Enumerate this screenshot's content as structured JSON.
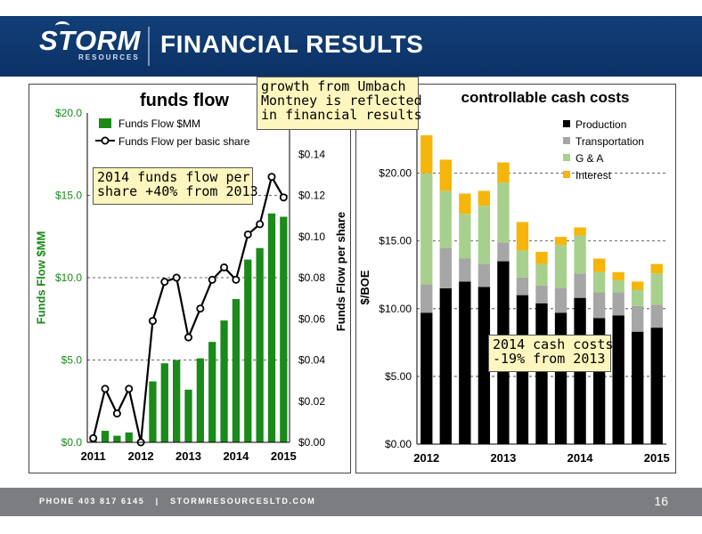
{
  "header": {
    "logo_text": "STORM",
    "logo_subtext": "RESOURCES",
    "title": "FINANCIAL RESULTS"
  },
  "footer": {
    "contact": "PHONE 403 817 6145   |   STORMRESOURCESLTD.COM",
    "page_number": "16"
  },
  "colors": {
    "brand_blue": "#123f78",
    "funds_green": "#1a8a1a",
    "production": "#000000",
    "transportation": "#a6a6a6",
    "g_and_a": "#a8d08d",
    "interest": "#f5b50a",
    "note_fill": "#fdf6be"
  },
  "notes": {
    "umbach": "growth from Umbach\nMontney is reflected\nin financial results",
    "funds": "2014 funds flow per\nshare +40% from 2013",
    "costs": "2014 cash costs\n-19% from 2013"
  },
  "chart_data": [
    {
      "type": "bar",
      "title": "funds flow",
      "ylabel": "Funds Flow $MM",
      "y2label": "Funds Flow per share",
      "ylim": [
        0,
        20
      ],
      "y2lim": [
        0,
        0.16
      ],
      "yticks": [
        "$0.0",
        "$5.0",
        "$10.0",
        "$15.0",
        "$20.0"
      ],
      "y2ticks": [
        "$0.00",
        "$0.02",
        "$0.04",
        "$0.06",
        "$0.08",
        "$0.10",
        "$0.12",
        "$0.14"
      ],
      "xtick_labels": [
        "2011",
        "2012",
        "2013",
        "2014",
        "2015"
      ],
      "x_quarters": [
        "2011 Q1",
        "2011 Q2",
        "2011 Q3",
        "2011 Q4",
        "2012 Q1",
        "2012 Q2",
        "2012 Q3",
        "2012 Q4",
        "2013 Q1",
        "2013 Q2",
        "2013 Q3",
        "2013 Q4",
        "2014 Q1",
        "2014 Q2",
        "2014 Q3",
        "2014 Q4",
        "2015 Q1"
      ],
      "grid": "horizontal dashed",
      "legend_position": "top-left",
      "series": [
        {
          "name": "Funds Flow $MM",
          "type": "bar",
          "axis": "left",
          "values": [
            0.1,
            0.7,
            0.4,
            0.6,
            0.0,
            3.7,
            4.8,
            5.0,
            3.2,
            5.1,
            6.1,
            7.4,
            8.7,
            11.1,
            11.8,
            13.9,
            13.7
          ]
        },
        {
          "name": "Funds Flow per basic share",
          "type": "line",
          "axis": "right",
          "values": [
            0.002,
            0.026,
            0.014,
            0.026,
            0.0,
            0.059,
            0.078,
            0.08,
            0.051,
            0.065,
            0.079,
            0.085,
            0.079,
            0.101,
            0.106,
            0.129,
            0.119
          ]
        }
      ]
    },
    {
      "type": "bar",
      "stacked": true,
      "title": "controllable cash costs",
      "ylabel": "$/BOE",
      "ylim": [
        0,
        23
      ],
      "yticks": [
        "$0.00",
        "$5.00",
        "$10.00",
        "$15.00",
        "$20.00"
      ],
      "xtick_labels": [
        "2012",
        "2013",
        "2014",
        "2015"
      ],
      "x_quarters": [
        "2012 Q1",
        "2012 Q2",
        "2012 Q3",
        "2012 Q4",
        "2013 Q1",
        "2013 Q2",
        "2013 Q3",
        "2013 Q4",
        "2014 Q1",
        "2014 Q2",
        "2014 Q3",
        "2014 Q4",
        "2015 Q1"
      ],
      "grid": "horizontal dashed",
      "legend_position": "top-right",
      "series": [
        {
          "name": "Production",
          "values": [
            9.7,
            11.5,
            12.0,
            11.6,
            13.5,
            11.0,
            10.4,
            9.7,
            10.8,
            9.3,
            9.5,
            8.3,
            8.6
          ]
        },
        {
          "name": "Transportation",
          "values": [
            2.1,
            3.0,
            1.7,
            1.7,
            1.4,
            1.3,
            1.3,
            1.8,
            1.8,
            1.9,
            1.7,
            1.9,
            1.7
          ]
        },
        {
          "name": "G & A",
          "values": [
            8.2,
            4.2,
            3.3,
            4.3,
            4.4,
            2.0,
            1.6,
            3.2,
            2.8,
            1.5,
            0.9,
            1.2,
            2.3
          ]
        },
        {
          "name": "Interest",
          "values": [
            2.8,
            2.3,
            1.5,
            1.1,
            1.5,
            2.1,
            0.9,
            0.6,
            0.6,
            1.0,
            0.6,
            0.6,
            0.7
          ]
        }
      ]
    }
  ]
}
